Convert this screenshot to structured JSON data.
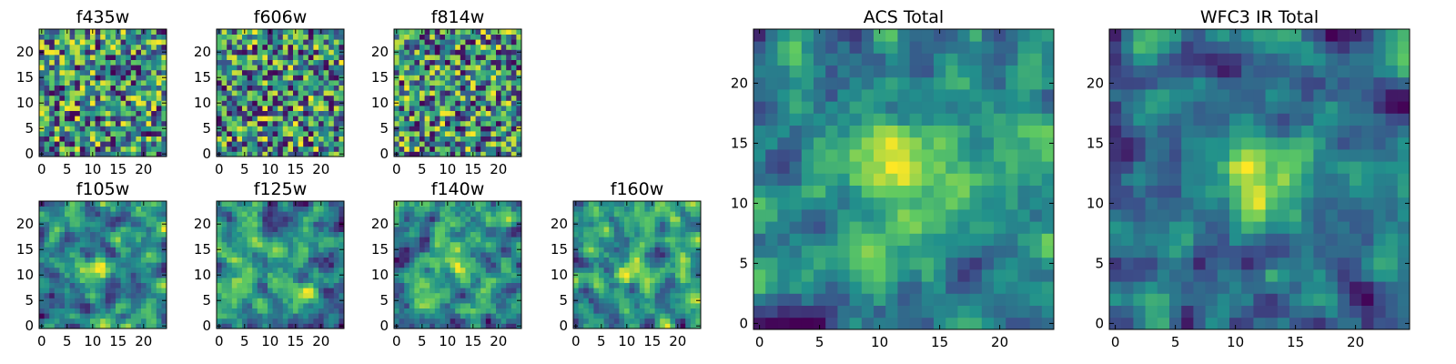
{
  "figure": {
    "colormap": "viridis",
    "colors": [
      "#440154",
      "#3b528b",
      "#21918c",
      "#5ec962",
      "#fde725"
    ],
    "charts": [
      {
        "type": "heatmap",
        "title": "f435w",
        "x_ticks": [
          0,
          5,
          10,
          15,
          20
        ],
        "y_ticks": [
          0,
          5,
          10,
          15,
          20
        ],
        "xlim": [
          -0.5,
          24.5
        ],
        "ylim": [
          -0.5,
          24.5
        ],
        "grid": false,
        "data": "25x25 pixel cutout, noise-like values"
      },
      {
        "type": "heatmap",
        "title": "f606w",
        "x_ticks": [
          0,
          5,
          10,
          15,
          20
        ],
        "y_ticks": [
          0,
          5,
          10,
          15,
          20
        ],
        "xlim": [
          -0.5,
          24.5
        ],
        "ylim": [
          -0.5,
          24.5
        ],
        "grid": false,
        "data": "25x25 pixel cutout, noise-like values"
      },
      {
        "type": "heatmap",
        "title": "f814w",
        "x_ticks": [
          0,
          5,
          10,
          15,
          20
        ],
        "y_ticks": [
          0,
          5,
          10,
          15,
          20
        ],
        "xlim": [
          -0.5,
          24.5
        ],
        "ylim": [
          -0.5,
          24.5
        ],
        "grid": false,
        "data": "25x25 pixel cutout, noise-like values"
      },
      {
        "type": "heatmap",
        "title": "f105w",
        "x_ticks": [
          0,
          5,
          10,
          15,
          20
        ],
        "y_ticks": [
          0,
          5,
          10,
          15,
          20
        ],
        "xlim": [
          -0.5,
          24.5
        ],
        "ylim": [
          -0.5,
          24.5
        ],
        "grid": false,
        "data": "25x25 pixel cutout, smoothed noise"
      },
      {
        "type": "heatmap",
        "title": "f125w",
        "x_ticks": [
          0,
          5,
          10,
          15,
          20
        ],
        "y_ticks": [
          0,
          5,
          10,
          15,
          20
        ],
        "xlim": [
          -0.5,
          24.5
        ],
        "ylim": [
          -0.5,
          24.5
        ],
        "grid": false,
        "data": "25x25 pixel cutout, smoothed noise"
      },
      {
        "type": "heatmap",
        "title": "f140w",
        "x_ticks": [
          0,
          5,
          10,
          15,
          20
        ],
        "y_ticks": [
          0,
          5,
          10,
          15,
          20
        ],
        "xlim": [
          -0.5,
          24.5
        ],
        "ylim": [
          -0.5,
          24.5
        ],
        "grid": false,
        "data": "25x25 pixel cutout, smoothed noise"
      },
      {
        "type": "heatmap",
        "title": "f160w",
        "x_ticks": [
          0,
          5,
          10,
          15,
          20
        ],
        "y_ticks": [
          0,
          5,
          10,
          15,
          20
        ],
        "xlim": [
          -0.5,
          24.5
        ],
        "ylim": [
          -0.5,
          24.5
        ],
        "grid": false,
        "data": "25x25 pixel cutout, smoothed noise"
      },
      {
        "type": "heatmap",
        "title": "ACS Total",
        "x_ticks": [
          0,
          5,
          10,
          15,
          20
        ],
        "y_ticks": [
          0,
          5,
          10,
          15,
          20
        ],
        "xlim": [
          -0.5,
          24.5
        ],
        "ylim": [
          -0.5,
          24.5
        ],
        "grid": false,
        "data": "25x25 pixel coadd, bright region near x=12, y=13"
      },
      {
        "type": "heatmap",
        "title": "WFC3 IR Total",
        "x_ticks": [
          0,
          5,
          10,
          15,
          20
        ],
        "y_ticks": [
          0,
          5,
          10,
          15,
          20
        ],
        "xlim": [
          -0.5,
          24.5
        ],
        "ylim": [
          -0.5,
          24.5
        ],
        "grid": false,
        "data": "25x25 pixel coadd, bright region near x=12, y=12"
      }
    ]
  }
}
